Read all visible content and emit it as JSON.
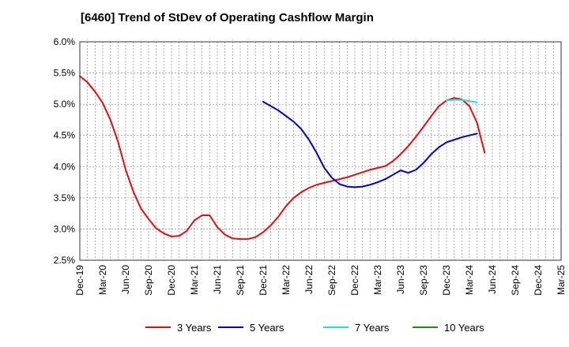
{
  "chart_data": {
    "type": "line",
    "title": "[6460]  Trend of StDev of Operating Cashflow Margin",
    "xlabel": "",
    "ylabel": "",
    "ylim": [
      2.5,
      6.0
    ],
    "yticks": [
      "2.5%",
      "3.0%",
      "3.5%",
      "4.0%",
      "4.5%",
      "5.0%",
      "5.5%",
      "6.0%"
    ],
    "xticks": [
      "Dec-19",
      "Mar-20",
      "Jun-20",
      "Sep-20",
      "Dec-20",
      "Mar-21",
      "Jun-21",
      "Sep-21",
      "Dec-21",
      "Mar-22",
      "Jun-22",
      "Sep-22",
      "Dec-22",
      "Mar-23",
      "Jun-23",
      "Sep-23",
      "Dec-23",
      "Mar-24",
      "Jun-24",
      "Sep-24",
      "Dec-24",
      "Mar-25"
    ],
    "grid": true,
    "legend_position": "bottom",
    "series": [
      {
        "name": "3 Years",
        "color": "#dd1111",
        "start": "Dec-19",
        "values": [
          5.45,
          5.35,
          5.2,
          5.02,
          4.75,
          4.4,
          3.95,
          3.6,
          3.33,
          3.16,
          3.01,
          2.93,
          2.88,
          2.89,
          2.97,
          3.14,
          3.22,
          3.22,
          3.03,
          2.91,
          2.85,
          2.84,
          2.84,
          2.87,
          2.95,
          3.06,
          3.2,
          3.37,
          3.5,
          3.59,
          3.66,
          3.71,
          3.74,
          3.77,
          3.8,
          3.83,
          3.87,
          3.91,
          3.95,
          3.98,
          4.01,
          4.09,
          4.2,
          4.33,
          4.48,
          4.64,
          4.81,
          4.97,
          5.06,
          5.1,
          5.08,
          4.97,
          4.7,
          4.22
        ]
      },
      {
        "name": "5 Years",
        "color": "#0000cc",
        "start": "Dec-21",
        "values": [
          5.04,
          4.97,
          4.9,
          4.81,
          4.72,
          4.6,
          4.43,
          4.22,
          3.98,
          3.82,
          3.72,
          3.68,
          3.67,
          3.68,
          3.71,
          3.75,
          3.8,
          3.87,
          3.94,
          3.9,
          3.95,
          4.06,
          4.2,
          4.31,
          4.39,
          4.43,
          4.47,
          4.5,
          4.53
        ]
      },
      {
        "name": "7 Years",
        "color": "#22dddd",
        "start": "Dec-23",
        "values": [
          5.06,
          5.07,
          5.07,
          5.05,
          5.03
        ]
      },
      {
        "name": "10 Years",
        "color": "#228822",
        "start": "Dec-23",
        "values": []
      }
    ]
  }
}
